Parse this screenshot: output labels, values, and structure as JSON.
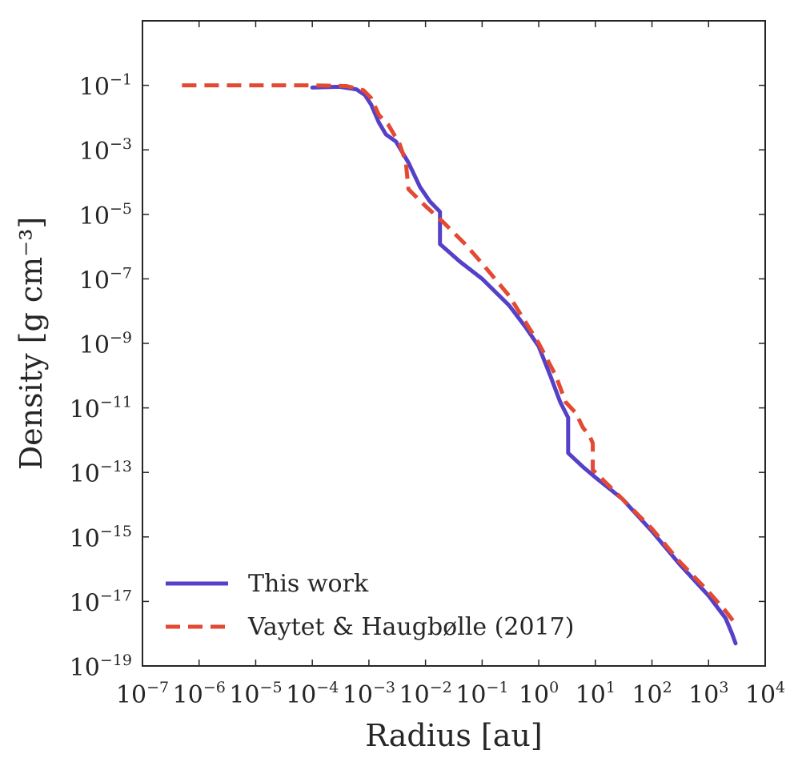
{
  "chart_data": {
    "type": "line",
    "xscale": "log",
    "yscale": "log",
    "xlabel": "Radius [au]",
    "ylabel": "Density [g cm⁻³]",
    "xlim": [
      1e-07,
      10000.0
    ],
    "ylim": [
      1e-19,
      10
    ],
    "grid": false,
    "legend_position": "bottom-left",
    "x_ticks": [
      {
        "base": "10",
        "exp": "−7",
        "value": 1e-07
      },
      {
        "base": "10",
        "exp": "−6",
        "value": 1e-06
      },
      {
        "base": "10",
        "exp": "−5",
        "value": 1e-05
      },
      {
        "base": "10",
        "exp": "−4",
        "value": 0.0001
      },
      {
        "base": "10",
        "exp": "−3",
        "value": 0.001
      },
      {
        "base": "10",
        "exp": "−2",
        "value": 0.01
      },
      {
        "base": "10",
        "exp": "−1",
        "value": 0.1
      },
      {
        "base": "10",
        "exp": "0",
        "value": 1
      },
      {
        "base": "10",
        "exp": "1",
        "value": 10
      },
      {
        "base": "10",
        "exp": "2",
        "value": 100
      },
      {
        "base": "10",
        "exp": "3",
        "value": 1000
      },
      {
        "base": "10",
        "exp": "4",
        "value": 10000
      }
    ],
    "y_ticks": [
      {
        "base": "10",
        "exp": "−1",
        "value": 0.1
      },
      {
        "base": "10",
        "exp": "−3",
        "value": 0.001
      },
      {
        "base": "10",
        "exp": "−5",
        "value": 1e-05
      },
      {
        "base": "10",
        "exp": "−7",
        "value": 1e-07
      },
      {
        "base": "10",
        "exp": "−9",
        "value": 1e-09
      },
      {
        "base": "10",
        "exp": "−11",
        "value": 1e-11
      },
      {
        "base": "10",
        "exp": "−13",
        "value": 1e-13
      },
      {
        "base": "10",
        "exp": "−15",
        "value": 1e-15
      },
      {
        "base": "10",
        "exp": "−17",
        "value": 1e-17
      },
      {
        "base": "10",
        "exp": "−19",
        "value": 1e-19
      }
    ],
    "series": [
      {
        "name": "This work",
        "color": "#5540c8",
        "dash": "solid",
        "points": [
          [
            0.0001,
            0.085
          ],
          [
            0.0003,
            0.09
          ],
          [
            0.0006,
            0.075
          ],
          [
            0.00085,
            0.05
          ],
          [
            0.0011,
            0.025
          ],
          [
            0.0015,
            0.007
          ],
          [
            0.002,
            0.003
          ],
          [
            0.003,
            0.0018
          ],
          [
            0.005,
            0.0004
          ],
          [
            0.008,
            7e-05
          ],
          [
            0.012,
            2.5e-05
          ],
          [
            0.018,
            1.2e-05
          ],
          [
            0.018,
            1.2e-06
          ],
          [
            0.04,
            3.5e-07
          ],
          [
            0.1,
            1e-07
          ],
          [
            0.3,
            1.5e-08
          ],
          [
            0.6,
            3e-09
          ],
          [
            1.0,
            8e-10
          ],
          [
            1.6,
            1e-10
          ],
          [
            2.4,
            1.5e-11
          ],
          [
            3.3,
            5e-12
          ],
          [
            3.3,
            4e-13
          ],
          [
            6.0,
            1.5e-13
          ],
          [
            10,
            7e-14
          ],
          [
            30,
            1.5e-14
          ],
          [
            100,
            1.5e-15
          ],
          [
            300,
            1.5e-16
          ],
          [
            1000,
            1.5e-17
          ],
          [
            2000,
            3e-18
          ],
          [
            2600,
            1e-18
          ],
          [
            3000,
            5e-19
          ]
        ]
      },
      {
        "name": "Vaytet & Haugbølle (2017)",
        "color": "#e24a33",
        "dash": "dashed",
        "points": [
          [
            5e-07,
            0.1
          ],
          [
            0.0001,
            0.1
          ],
          [
            0.0004,
            0.095
          ],
          [
            0.0008,
            0.07
          ],
          [
            0.0011,
            0.04
          ],
          [
            0.0015,
            0.012
          ],
          [
            0.0022,
            0.006
          ],
          [
            0.0035,
            0.0015
          ],
          [
            0.0045,
            0.0004
          ],
          [
            0.005,
            6e-05
          ],
          [
            0.01,
            1.8e-05
          ],
          [
            0.02,
            6e-06
          ],
          [
            0.05,
            1.2e-06
          ],
          [
            0.1,
            3e-07
          ],
          [
            0.3,
            3e-08
          ],
          [
            1.0,
            1e-09
          ],
          [
            2.0,
            1e-10
          ],
          [
            3.0,
            1.5e-11
          ],
          [
            4.5,
            7e-12
          ],
          [
            6.0,
            2.5e-12
          ],
          [
            8.0,
            1.3e-12
          ],
          [
            9.0,
            8e-13
          ],
          [
            9.0,
            1.2e-13
          ],
          [
            30,
            1.5e-14
          ],
          [
            100,
            1.8e-15
          ],
          [
            300,
            1.8e-16
          ],
          [
            1000,
            2e-17
          ],
          [
            2000,
            5e-18
          ],
          [
            3000,
            2e-18
          ]
        ]
      }
    ]
  }
}
